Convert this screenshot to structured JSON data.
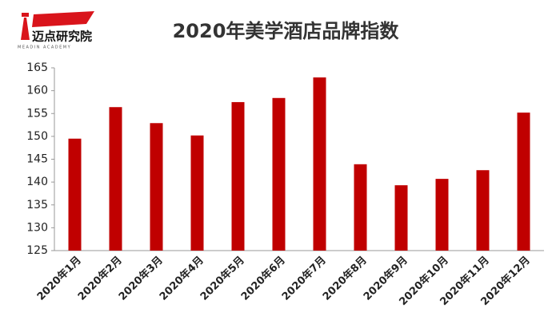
{
  "logo": {
    "name": "迈点研究院",
    "subtitle": "MEADIN ACADEMY"
  },
  "chart_data": {
    "type": "bar",
    "title": "2020年美学酒店品牌指数",
    "categories": [
      "2020年1月",
      "2020年2月",
      "2020年3月",
      "2020年4月",
      "2020年5月",
      "2020年6月",
      "2020年7月",
      "2020年8月",
      "2020年9月",
      "2020年10月",
      "2020年11月",
      "2020年12月"
    ],
    "values": [
      149.5,
      156.4,
      152.9,
      150.2,
      157.5,
      158.4,
      162.9,
      143.9,
      139.3,
      140.7,
      142.6,
      155.2
    ],
    "color": "#c00000",
    "ylim": [
      125,
      165
    ],
    "yticks": [
      125,
      130,
      135,
      140,
      145,
      150,
      155,
      160,
      165
    ],
    "grid": false
  }
}
